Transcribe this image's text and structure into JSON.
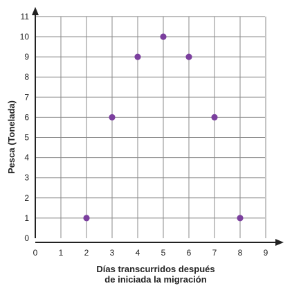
{
  "chart_data": {
    "type": "scatter",
    "title": "",
    "xlabel_lines": [
      "Días transcurridos después",
      "de iniciada la migración"
    ],
    "ylabel": "Pesca (Tonelada)",
    "xlim": [
      0,
      9
    ],
    "ylim": [
      0,
      11
    ],
    "x_ticks": [
      "0",
      "1",
      "2",
      "3",
      "4",
      "5",
      "6",
      "7",
      "8",
      "9"
    ],
    "y_ticks": [
      "0",
      "1",
      "2",
      "3",
      "4",
      "5",
      "6",
      "7",
      "8",
      "9",
      "10",
      "11"
    ],
    "grid": true,
    "point_color": "#7b3f9e",
    "points": [
      {
        "x": 2,
        "y": 1
      },
      {
        "x": 3,
        "y": 6
      },
      {
        "x": 4,
        "y": 9
      },
      {
        "x": 5,
        "y": 10
      },
      {
        "x": 6,
        "y": 9
      },
      {
        "x": 7,
        "y": 6
      },
      {
        "x": 8,
        "y": 1
      }
    ]
  }
}
